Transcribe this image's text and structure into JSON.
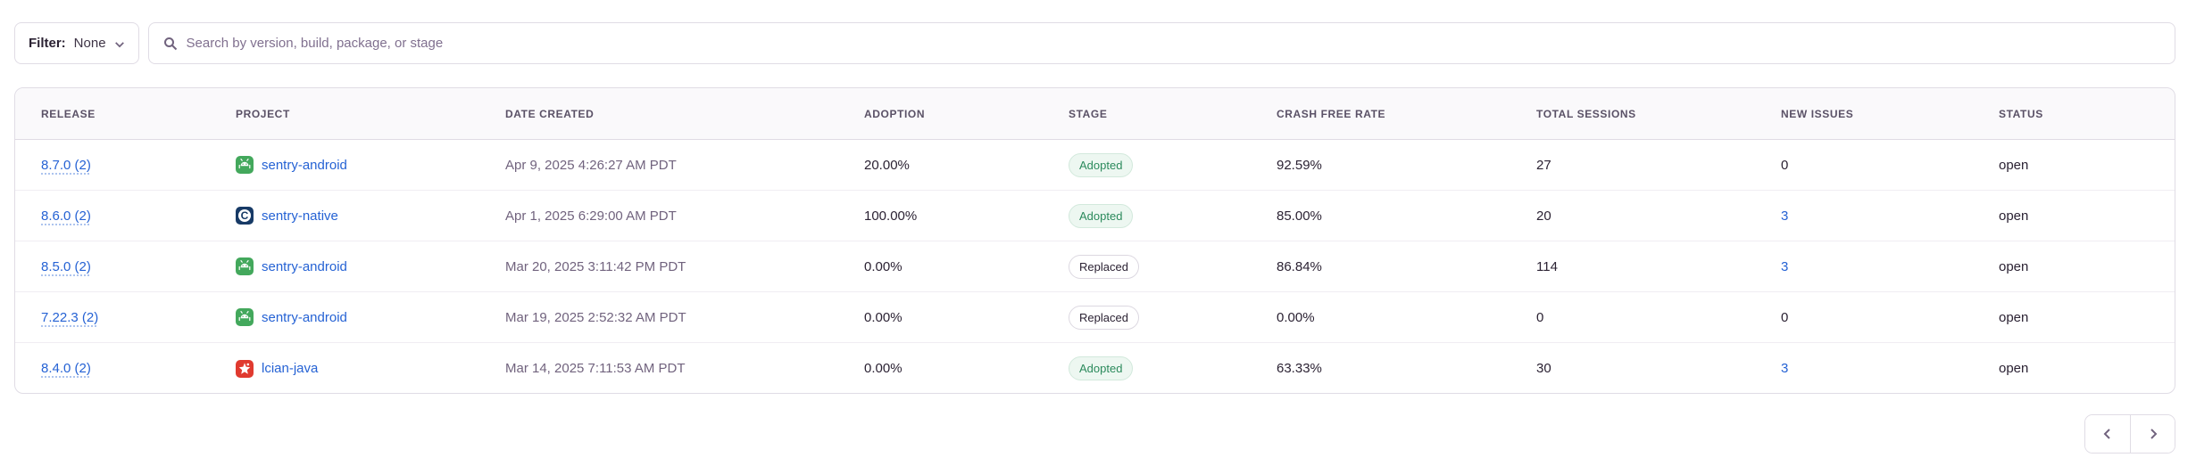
{
  "filter": {
    "label": "Filter:",
    "value": "None"
  },
  "search": {
    "placeholder": "Search by version, build, package, or stage"
  },
  "table": {
    "columns": [
      "Release",
      "Project",
      "Date Created",
      "Adoption",
      "Stage",
      "Crash Free Rate",
      "Total Sessions",
      "New Issues",
      "Status"
    ],
    "rows": [
      {
        "release": "8.7.0 (2)",
        "project": "sentry-android",
        "project_icon": "android-icon",
        "date_created": "Apr 9, 2025 4:26:27 AM PDT",
        "adoption": "20.00%",
        "stage": "Adopted",
        "crash_free_rate": "92.59%",
        "total_sessions": "27",
        "new_issues": "0",
        "new_issues_is_link": false,
        "status": "open"
      },
      {
        "release": "8.6.0 (2)",
        "project": "sentry-native",
        "project_icon": "c-icon",
        "date_created": "Apr 1, 2025 6:29:00 AM PDT",
        "adoption": "100.00%",
        "stage": "Adopted",
        "crash_free_rate": "85.00%",
        "total_sessions": "20",
        "new_issues": "3",
        "new_issues_is_link": true,
        "status": "open"
      },
      {
        "release": "8.5.0 (2)",
        "project": "sentry-android",
        "project_icon": "android-icon",
        "date_created": "Mar 20, 2025 3:11:42 PM PDT",
        "adoption": "0.00%",
        "stage": "Replaced",
        "crash_free_rate": "86.84%",
        "total_sessions": "114",
        "new_issues": "3",
        "new_issues_is_link": true,
        "status": "open"
      },
      {
        "release": "7.22.3 (2)",
        "project": "sentry-android",
        "project_icon": "android-icon",
        "date_created": "Mar 19, 2025 2:52:32 AM PDT",
        "adoption": "0.00%",
        "stage": "Replaced",
        "crash_free_rate": "0.00%",
        "total_sessions": "0",
        "new_issues": "0",
        "new_issues_is_link": false,
        "status": "open"
      },
      {
        "release": "8.4.0 (2)",
        "project": "lcian-java",
        "project_icon": "java-icon",
        "date_created": "Mar 14, 2025 7:11:53 AM PDT",
        "adoption": "0.00%",
        "stage": "Adopted",
        "crash_free_rate": "63.33%",
        "total_sessions": "30",
        "new_issues": "3",
        "new_issues_is_link": true,
        "status": "open"
      }
    ]
  },
  "pagination": {
    "prev": "chevron-left-icon",
    "next": "chevron-right-icon"
  },
  "colors": {
    "link_blue": "#2562d4",
    "adopted_green": "#2b8a5c",
    "android_icon_bg": "#43a85c",
    "c_icon_bg": "#173a66",
    "java_icon_bg": "#e03a2f",
    "header_bg": "#faf9fb",
    "border": "#e0dce5"
  }
}
